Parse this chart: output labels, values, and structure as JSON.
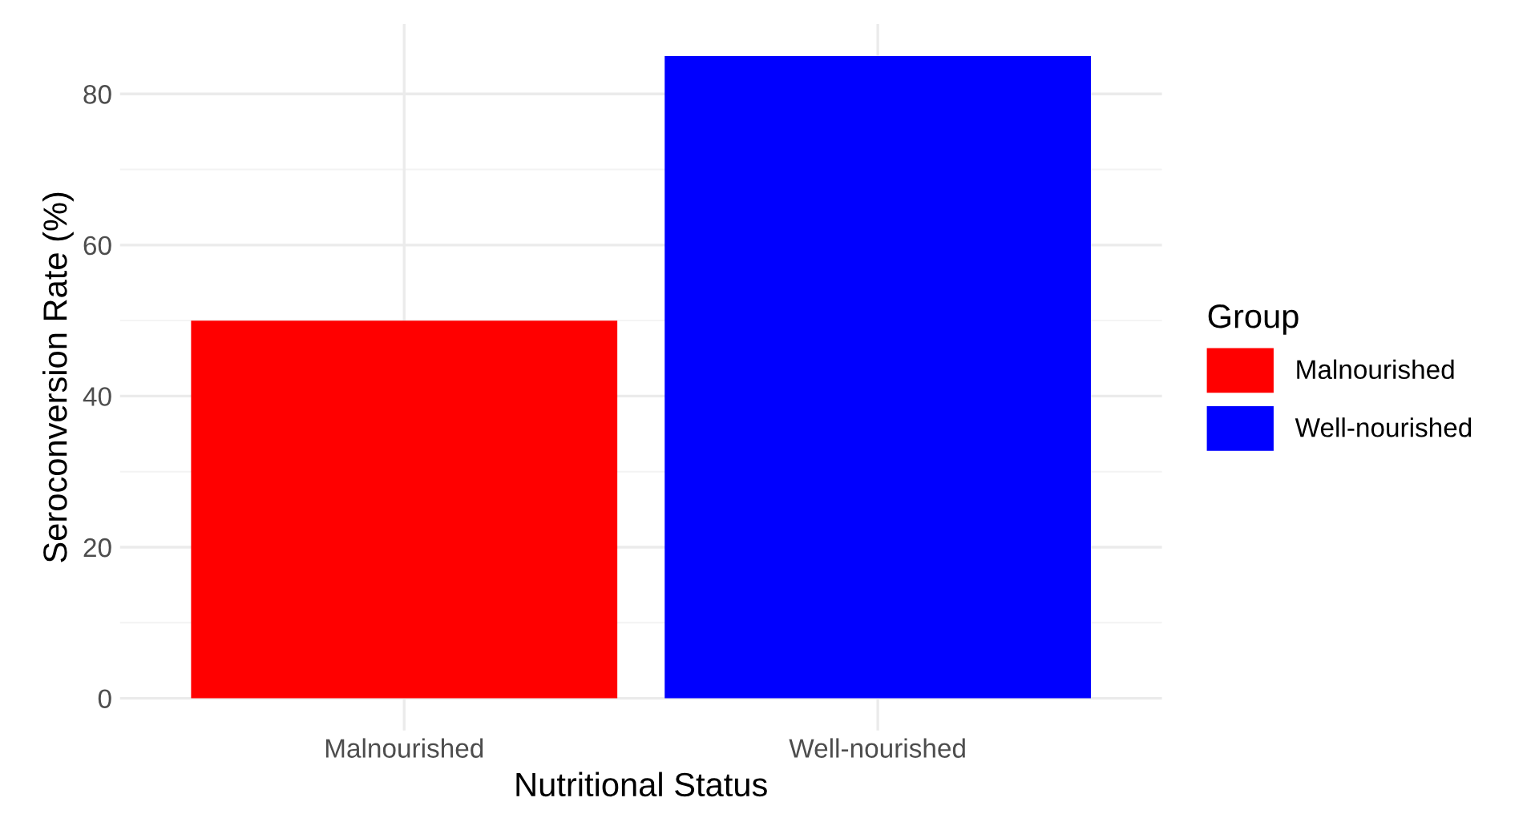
{
  "chart_data": {
    "type": "bar",
    "xlabel": "Nutritional Status",
    "ylabel": "Seroconversion Rate (%)",
    "legend_title": "Group",
    "categories": [
      "Malnourished",
      "Well-nourished"
    ],
    "series": [
      {
        "name": "Malnourished",
        "color": "#ff0000",
        "values": [
          50,
          null
        ]
      },
      {
        "name": "Well-nourished",
        "color": "#0000ff",
        "values": [
          null,
          85
        ]
      }
    ],
    "ylim": [
      -4.25,
      89.25
    ],
    "yticks": [
      0,
      20,
      40,
      60,
      80
    ],
    "grid": true,
    "legend": "right"
  }
}
